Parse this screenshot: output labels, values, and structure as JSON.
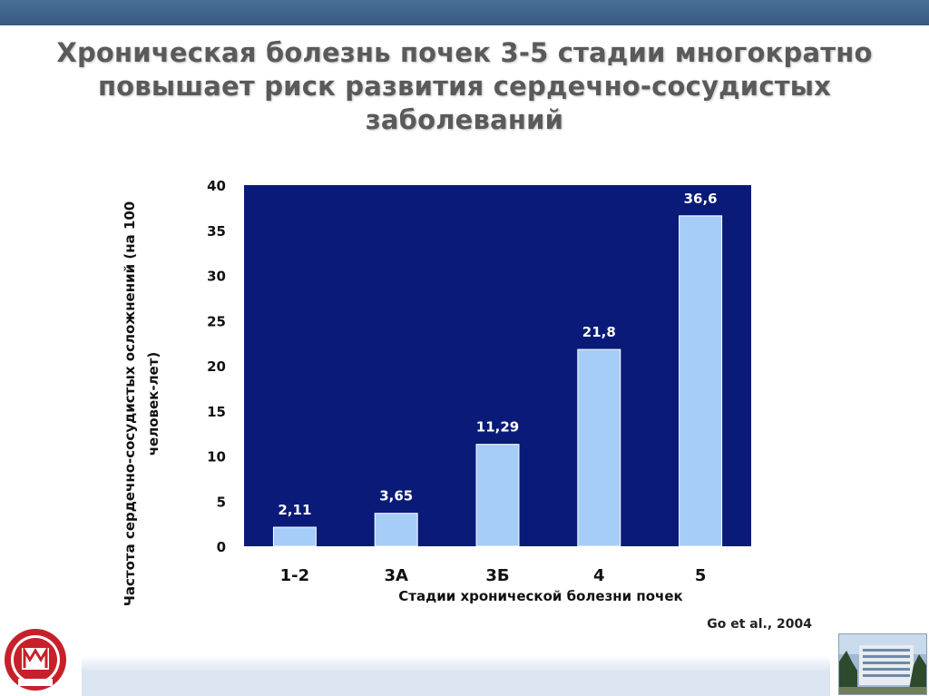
{
  "slide": {
    "title_line1": "Хроническая болезнь почек 3-5 стадии многократно",
    "title_line2": "повышает риск развития сердечно-сосудистых",
    "title_line3": "заболеваний",
    "citation": "Go et al., 2004"
  },
  "colors": {
    "plot_background": "#0a1a78",
    "bar_fill": "#a6cdf7",
    "top_bar": "#3f6690",
    "title_text": "#5a5a5a"
  },
  "chart_data": {
    "type": "bar",
    "categories": [
      "1-2",
      "3А",
      "3Б",
      "4",
      "5"
    ],
    "values": [
      2.11,
      3.65,
      11.29,
      21.8,
      36.6
    ],
    "value_labels": [
      "2,11",
      "3,65",
      "11,29",
      "21,8",
      "36,6"
    ],
    "xlabel": "Стадии хронической болезни почек",
    "ylabel_line1": "Частота сердечно-сосудистых осложнений (на 100",
    "ylabel_line2": "человек-лет)",
    "ylim": [
      0,
      40
    ],
    "yticks": [
      0,
      5,
      10,
      15,
      20,
      25,
      30,
      35,
      40
    ],
    "grid": false,
    "legend": "none"
  },
  "icons": {
    "logo": "university-crest-icon",
    "photo": "building-photo"
  }
}
